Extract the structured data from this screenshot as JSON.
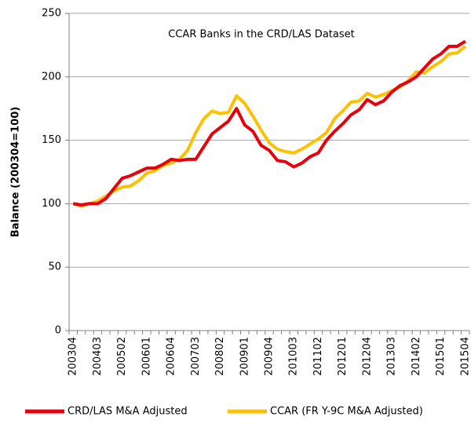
{
  "chart_data": {
    "type": "line",
    "title": "CCAR Banks in the CRD/LAS Dataset",
    "y_label": "Balance (200304=100)",
    "categories": [
      "200304",
      null,
      null,
      "200403",
      null,
      null,
      "200502",
      null,
      null,
      "200601",
      null,
      null,
      "200604",
      null,
      null,
      "200703",
      null,
      null,
      "200802",
      null,
      null,
      "200901",
      null,
      null,
      "200904",
      null,
      null,
      "201003",
      null,
      null,
      "201102",
      null,
      null,
      "201201",
      null,
      null,
      "201204",
      null,
      null,
      "201303",
      null,
      null,
      "201402",
      null,
      null,
      "201501",
      null,
      null,
      "201504"
    ],
    "series": [
      {
        "name": "CRD/LAS M&A Adjusted",
        "color": "#e8000b",
        "values": [
          100,
          99,
          100,
          100,
          104,
          112,
          120,
          122,
          125,
          128,
          128,
          131,
          135,
          134,
          135,
          135,
          145,
          155,
          160,
          165,
          175,
          162,
          157,
          146,
          142,
          134,
          133,
          129,
          132,
          137,
          140,
          150,
          157,
          163,
          170,
          174,
          182,
          178,
          181,
          188,
          193,
          196,
          200,
          207,
          214,
          218,
          224,
          224,
          228
        ]
      },
      {
        "name": "CCAR (FR Y-9C M&A Adjusted)",
        "color": "#ffc000",
        "values": [
          100,
          98,
          100,
          102,
          106,
          110,
          113,
          114,
          118,
          124,
          126,
          130,
          132,
          135,
          142,
          156,
          167,
          173,
          171,
          172,
          185,
          179,
          169,
          158,
          148,
          143,
          141,
          140,
          143,
          147,
          151,
          156,
          167,
          173,
          180,
          181,
          187,
          184,
          186,
          189,
          192,
          197,
          204,
          203,
          208,
          212,
          218,
          219,
          224
        ]
      }
    ],
    "ylim": [
      0,
      250
    ],
    "yticks": [
      0,
      50,
      100,
      150,
      200,
      250
    ],
    "grid": true,
    "legend": "bottom"
  }
}
